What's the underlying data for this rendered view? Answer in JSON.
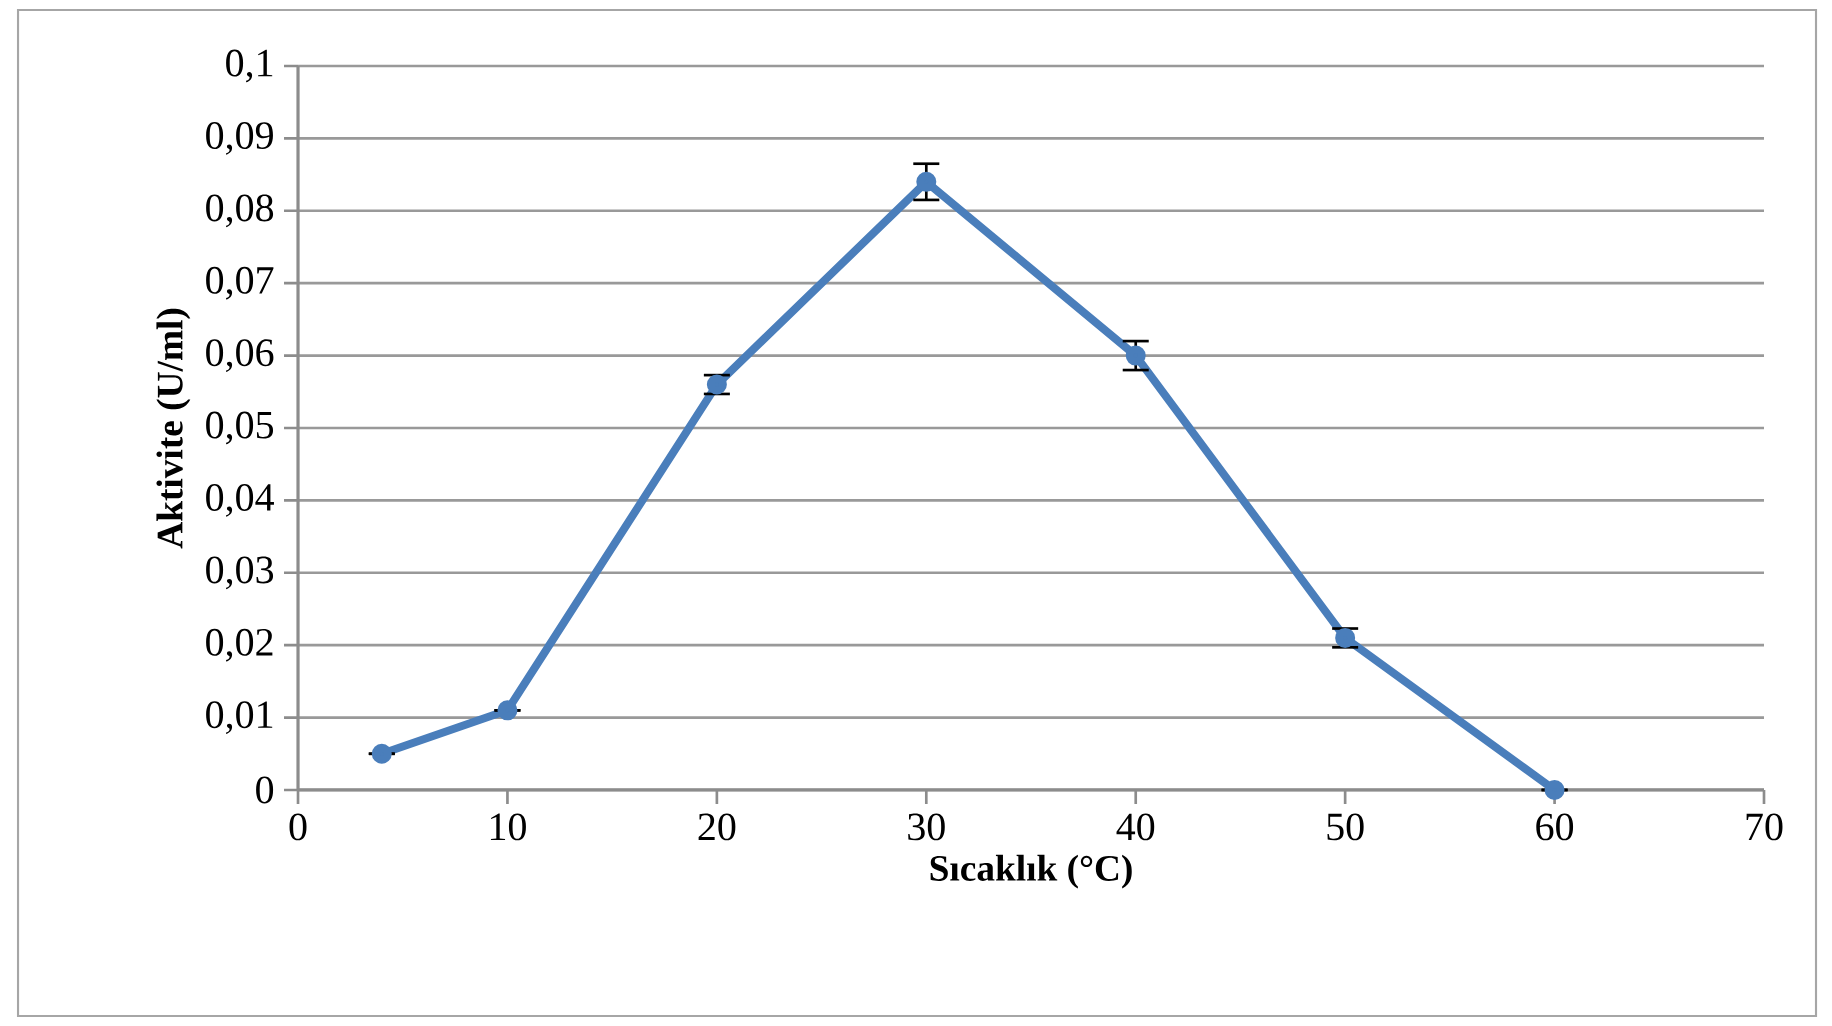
{
  "chart_data": {
    "type": "line",
    "xlabel": "Sıcaklık (°C)",
    "ylabel": "Aktivite (U/ml)",
    "x": [
      4,
      10,
      20,
      30,
      40,
      50,
      60
    ],
    "series": [
      {
        "color": "#4a7ebb",
        "values": [
          0.005,
          0.011,
          0.056,
          0.084,
          0.06,
          0.021,
          0.0
        ],
        "errors": [
          null,
          null,
          0.0013,
          0.0025,
          0.002,
          0.0013,
          null
        ]
      }
    ],
    "xlim": [
      0,
      70
    ],
    "xticks": [
      0,
      10,
      20,
      30,
      40,
      50,
      60,
      70
    ],
    "ylim": [
      0,
      0.1
    ],
    "yticks": [
      {
        "value": 0,
        "label": "0"
      },
      {
        "value": 0.01,
        "label": "0,01"
      },
      {
        "value": 0.02,
        "label": "0,02"
      },
      {
        "value": 0.03,
        "label": "0,03"
      },
      {
        "value": 0.04,
        "label": "0,04"
      },
      {
        "value": 0.05,
        "label": "0,05"
      },
      {
        "value": 0.06,
        "label": "0,06"
      },
      {
        "value": 0.07,
        "label": "0,07"
      },
      {
        "value": 0.08,
        "label": "0,08"
      },
      {
        "value": 0.09,
        "label": "0,09"
      },
      {
        "value": 0.1,
        "label": "0,1"
      }
    ],
    "grid": "y",
    "marker": "circle",
    "line_style": "solid"
  }
}
